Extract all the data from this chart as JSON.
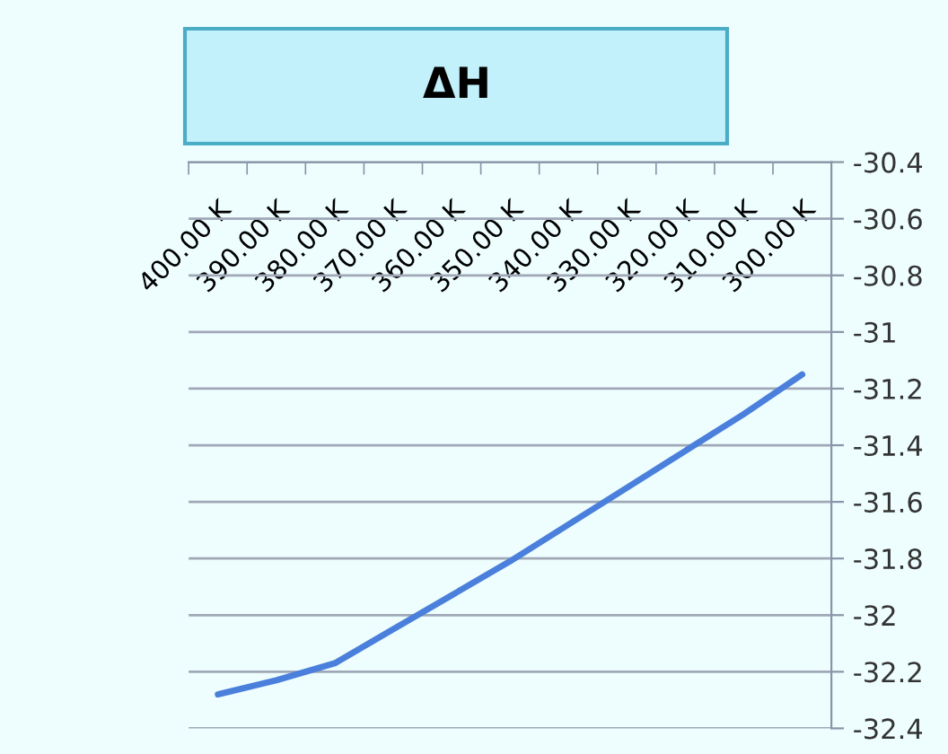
{
  "chart_data": {
    "type": "line",
    "title": "ΔH",
    "categories": [
      "400.00 K",
      "390.00 K",
      "380.00 K",
      "370.00 K",
      "360.00 K",
      "350.00 K",
      "340.00 K",
      "330.00 K",
      "320.00 K",
      "310.00 K",
      "300.00 K"
    ],
    "series": [
      {
        "color": "#4a7fdc",
        "values": [
          -32.28,
          -32.23,
          -32.17,
          -32.05,
          -31.93,
          -31.81,
          -31.68,
          -31.55,
          -31.42,
          -31.29,
          -31.15
        ]
      }
    ],
    "ylim": [
      -32.4,
      -30.4
    ],
    "yticks": [
      -32.4,
      -32.2,
      -32,
      -31.8,
      -31.6,
      -31.4,
      -31.2,
      -31,
      -30.8,
      -30.6,
      -30.4
    ],
    "grid": "y",
    "marker": "none",
    "line_style": "solid"
  }
}
